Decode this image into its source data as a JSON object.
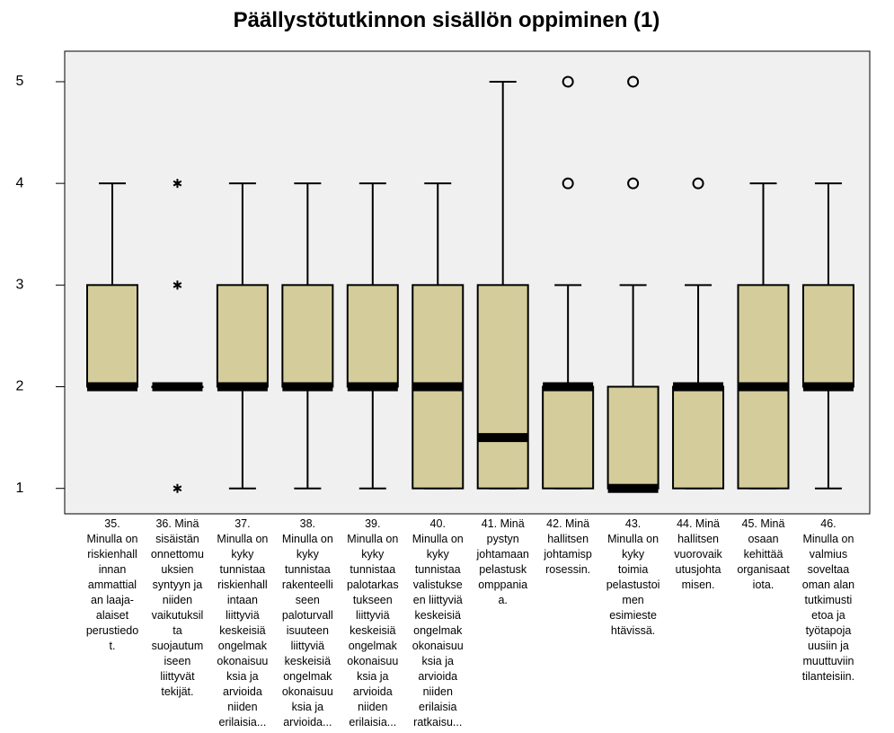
{
  "chart_data": {
    "type": "box",
    "title": "Päällystötutkinnon sisällön oppiminen (1)",
    "categories": [
      [
        "35.",
        "Minulla on",
        "riskienhall",
        "innan",
        "ammattial",
        "an laaja-",
        "alaiset",
        "perustiedo",
        "t."
      ],
      [
        "36. Minä",
        "sisäistän",
        "onnettomu",
        "uksien",
        "syntyyn ja",
        "niiden",
        "vaikutuksil",
        "ta",
        "suojautum",
        "iseen",
        "liittyvät",
        "tekijät."
      ],
      [
        "37.",
        "Minulla on",
        "kyky",
        "tunnistaa",
        "riskienhall",
        "intaan",
        "liittyviä",
        "keskeisiä",
        "ongelmak",
        "okonaisuu",
        "ksia ja",
        "arvioida",
        "niiden",
        "erilaisia..."
      ],
      [
        "38.",
        "Minulla on",
        "kyky",
        "tunnistaa",
        "rakenteelli",
        "seen",
        "paloturvall",
        "isuuteen",
        "liittyviä",
        "keskeisiä",
        "ongelmak",
        "okonaisuu",
        "ksia ja",
        "arvioida..."
      ],
      [
        "39.",
        "Minulla on",
        "kyky",
        "tunnistaa",
        "palotarkas",
        "tukseen",
        "liittyviä",
        "keskeisiä",
        "ongelmak",
        "okonaisuu",
        "ksia ja",
        "arvioida",
        "niiden",
        "erilaisia..."
      ],
      [
        "40.",
        "Minulla on",
        "kyky",
        "tunnistaa",
        "valistukse",
        "en liittyviä",
        "keskeisiä",
        "ongelmak",
        "okonaisuu",
        "ksia ja",
        "arvioida",
        "niiden",
        "erilaisia",
        "ratkaisu..."
      ],
      [
        "41. Minä",
        "pystyn",
        "johtamaan",
        "pelastusk",
        "omppania",
        "a."
      ],
      [
        "42. Minä",
        "hallitsen",
        "johtamisp",
        "rosessin."
      ],
      [
        "43.",
        "Minulla on",
        "kyky",
        "toimia",
        "pelastustoi",
        "men",
        "esimieste",
        "htävissä."
      ],
      [
        "44. Minä",
        "hallitsen",
        "vuorovaik",
        "utusjohta",
        "misen."
      ],
      [
        "45. Minä",
        "osaan",
        "kehittää",
        "organisaat",
        "iota."
      ],
      [
        "46.",
        "Minulla on",
        "valmius",
        "soveltaa",
        "oman alan",
        "tutkimusti",
        "etoa ja",
        "työtapoja",
        "uusiin ja",
        "muuttuviin",
        "tilanteisiin."
      ]
    ],
    "boxes": [
      {
        "min": 2,
        "q1": 2,
        "median": 2,
        "q3": 3,
        "max": 4
      },
      {
        "min": 2,
        "q1": 2,
        "median": 2,
        "q3": 2,
        "max": 2,
        "extremes": [
          4,
          3,
          1
        ]
      },
      {
        "min": 1,
        "q1": 2,
        "median": 2,
        "q3": 3,
        "max": 4
      },
      {
        "min": 1,
        "q1": 2,
        "median": 2,
        "q3": 3,
        "max": 4
      },
      {
        "min": 1,
        "q1": 2,
        "median": 2,
        "q3": 3,
        "max": 4
      },
      {
        "min": 1,
        "q1": 1,
        "median": 2,
        "q3": 3,
        "max": 4
      },
      {
        "min": 1,
        "q1": 1,
        "median": 1.5,
        "q3": 3,
        "max": 5
      },
      {
        "min": 1,
        "q1": 1,
        "median": 2,
        "q3": 2,
        "max": 3,
        "outliers": [
          4,
          5
        ]
      },
      {
        "min": 1,
        "q1": 1,
        "median": 1,
        "q3": 2,
        "max": 3,
        "outliers": [
          4,
          5
        ]
      },
      {
        "min": 1,
        "q1": 1,
        "median": 2,
        "q3": 2,
        "max": 3,
        "outliers": [
          4
        ]
      },
      {
        "min": 1,
        "q1": 1,
        "median": 2,
        "q3": 3,
        "max": 4
      },
      {
        "min": 1,
        "q1": 2,
        "median": 2,
        "q3": 3,
        "max": 4
      }
    ],
    "color": "#d4cd9b",
    "ylim": [
      0.75,
      5.3
    ],
    "yticks": [
      1,
      2,
      3,
      4,
      5
    ]
  }
}
